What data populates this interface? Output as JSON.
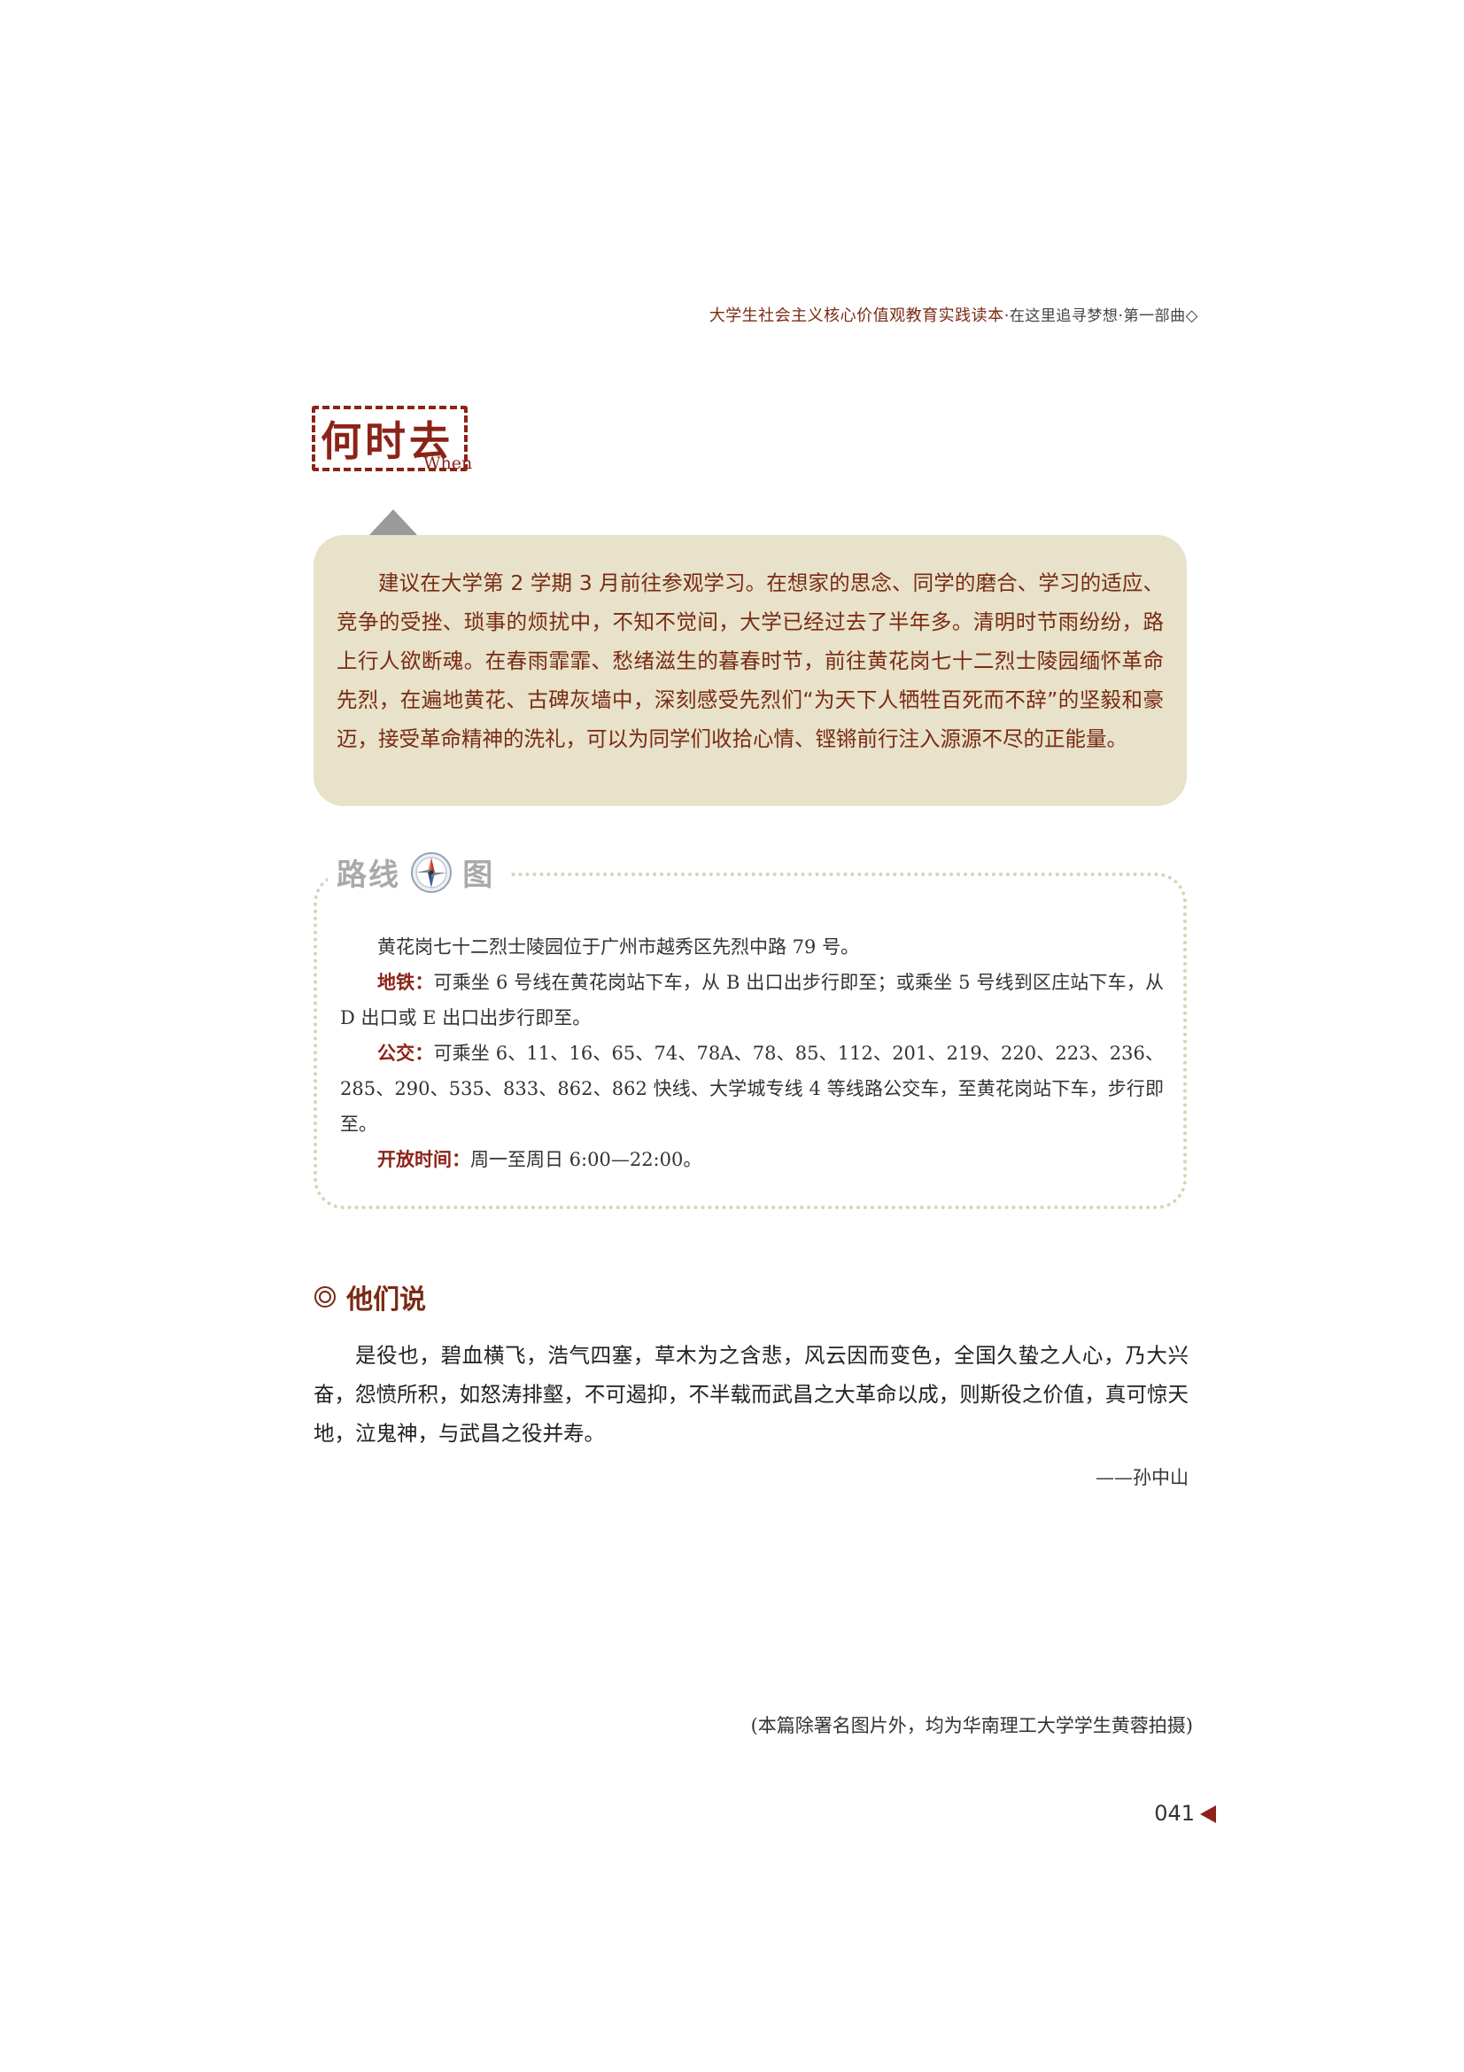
{
  "running_head": {
    "book_title": "大学生社会主义核心价值观教育实践读本",
    "separator1": "·",
    "section": "在这里追寻梦想",
    "separator2": "·",
    "part": "第一部曲",
    "marker": "◇"
  },
  "stamp": {
    "title": "何时去",
    "subtitle": "When"
  },
  "suggestion": {
    "text": "建议在大学第 2 学期 3 月前往参观学习。在想家的思念、同学的磨合、学习的适应、竞争的受挫、琐事的烦扰中，不知不觉间，大学已经过去了半年多。清明时节雨纷纷，路上行人欲断魂。在春雨霏霏、愁绪滋生的暮春时节，前往黄花岗七十二烈士陵园缅怀革命先烈，在遍地黄花、古碑灰墙中，深刻感受先烈们“为天下人牺牲百死而不辞”的坚毅和豪迈，接受革命精神的洗礼，可以为同学们收拾心情、铿锵前行注入源源不尽的正能量。"
  },
  "route": {
    "title_part1": "路线",
    "title_part2": "图",
    "address": "黄花岗七十二烈士陵园位于广州市越秀区先烈中路 79 号。",
    "metro_label": "地铁：",
    "metro_text": "可乘坐 6 号线在黄花岗站下车，从 B 出口出步行即至；或乘坐 5 号线到区庄站下车，从 D 出口或 E 出口出步行即至。",
    "bus_label": "公交：",
    "bus_text": "可乘坐 6、11、16、65、74、78A、78、85、112、201、219、220、223、236、285、290、535、833、862、862 快线、大学城专线 4 等线路公交车，至黄花岗站下车，步行即至。",
    "hours_label": "开放时间：",
    "hours_text": "周一至周日 6:00—22:00。"
  },
  "they_say": {
    "title": "他们说",
    "quote": "是役也，碧血横飞，浩气四塞，草木为之含悲，风云因而变色，全国久蛰之人心，乃大兴奋，怨愤所积，如怒涛排壑，不可遏抑，不半载而武昌之大革命以成，则斯役之价值，真可惊天地，泣鬼神，与武昌之役并寿。",
    "author": "——孙中山"
  },
  "photo_credit": "(本篇除署名图片外，均为华南理工大学学生黄蓉拍摄)",
  "page_number": "041",
  "colors": {
    "accent": "#8c2318",
    "callout_bg": "#e7e2c9",
    "dotted_border": "#d8d3b8"
  }
}
